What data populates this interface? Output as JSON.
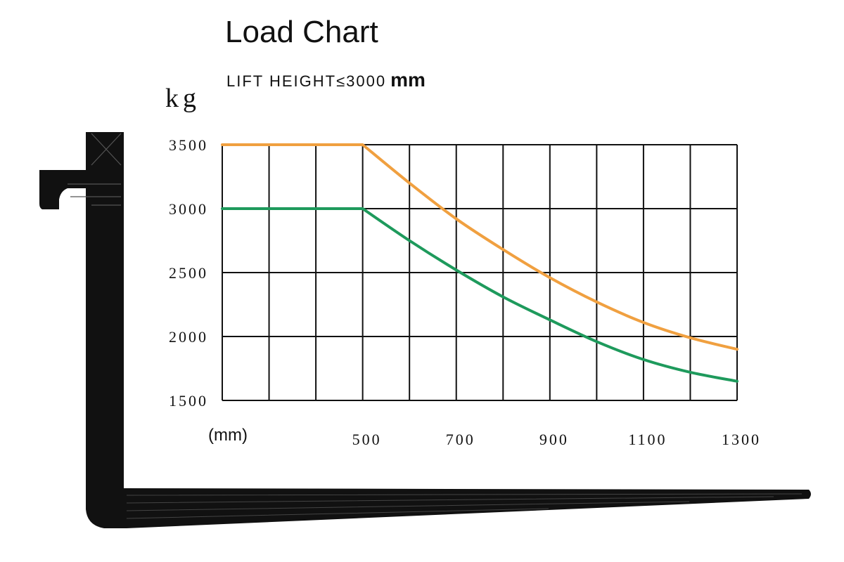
{
  "chart_data": {
    "type": "line",
    "title": "Load Chart",
    "subtitle": {
      "prefix": "LIFT HEIGHT",
      "symbol": "≤",
      "value": "3000",
      "unit": "mm"
    },
    "ylabel": "kg",
    "xlabel": "(mm)",
    "ylim": [
      1500,
      3500
    ],
    "xlim": [
      200,
      1300
    ],
    "yticks": [
      3500,
      3000,
      2500,
      2000,
      1500
    ],
    "xticks": [
      500,
      700,
      900,
      1100,
      1300
    ],
    "grid": true,
    "colors": {
      "series_1": "#f0a040",
      "series_2": "#1e9a5c",
      "grid": "#111111",
      "fork": "#111111"
    },
    "series": [
      {
        "x": [
          200,
          500,
          600,
          700,
          800,
          900,
          1000,
          1100,
          1200,
          1300
        ],
        "y": [
          3500,
          3500,
          3200,
          2920,
          2680,
          2460,
          2270,
          2110,
          1990,
          1900
        ]
      },
      {
        "x": [
          200,
          500,
          600,
          700,
          800,
          900,
          1000,
          1100,
          1200,
          1300
        ],
        "y": [
          3000,
          3000,
          2750,
          2520,
          2310,
          2130,
          1960,
          1820,
          1720,
          1650
        ]
      }
    ]
  }
}
